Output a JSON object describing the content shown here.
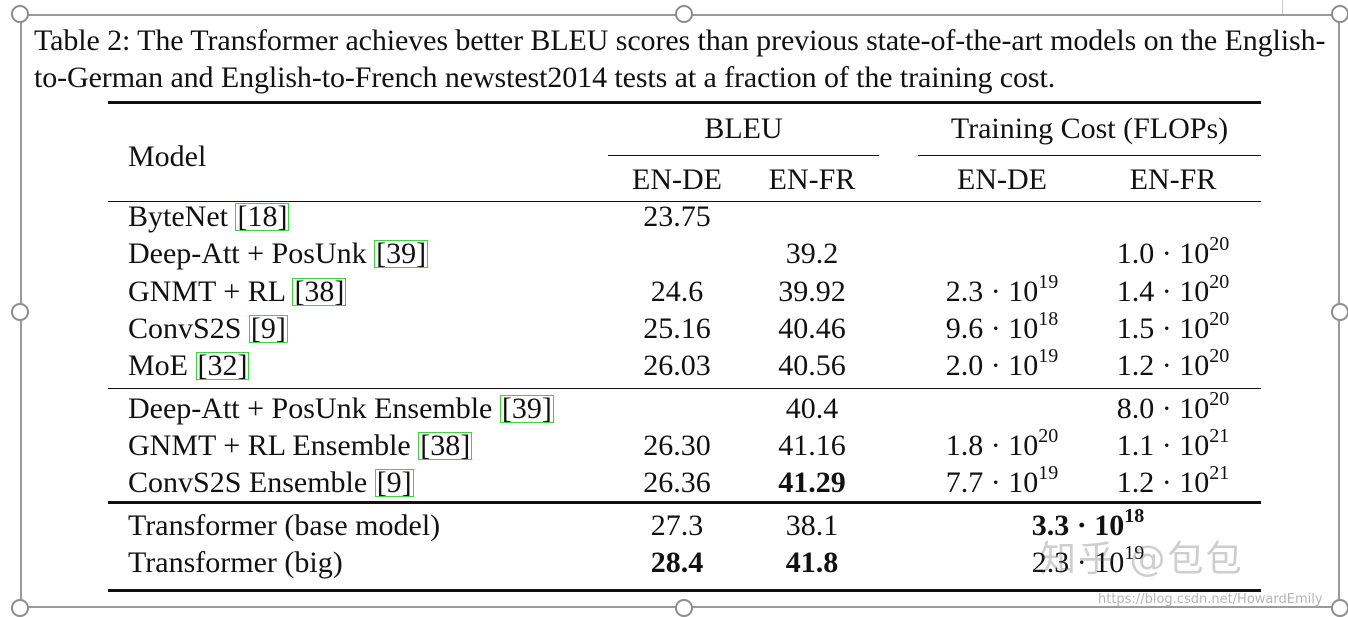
{
  "caption": "Table 2: The Transformer achieves better BLEU scores than previous state-of-the-art models on the English-to-German and English-to-French newstest2014 tests at a fraction of the training cost.",
  "header": {
    "model": "Model",
    "bleu": "BLEU",
    "training_cost": "Training Cost (FLOPs)",
    "en_de": "EN-DE",
    "en_fr": "EN-FR"
  },
  "rows": [
    {
      "model": "ByteNet ",
      "ref": "[18]",
      "bleu_de": "23.75",
      "bleu_fr": "",
      "cost_de": {
        "mant": "",
        "exp": ""
      },
      "cost_fr": {
        "mant": "",
        "exp": ""
      }
    },
    {
      "model": "Deep-Att + PosUnk ",
      "ref": "[39]",
      "bleu_de": "",
      "bleu_fr": "39.2",
      "cost_de": {
        "mant": "",
        "exp": ""
      },
      "cost_fr": {
        "mant": "1.0 · 10",
        "exp": "20"
      }
    },
    {
      "model": "GNMT + RL ",
      "ref": "[38]",
      "bleu_de": "24.6",
      "bleu_fr": "39.92",
      "cost_de": {
        "mant": "2.3 · 10",
        "exp": "19"
      },
      "cost_fr": {
        "mant": "1.4 · 10",
        "exp": "20"
      }
    },
    {
      "model": "ConvS2S ",
      "ref": "[9]",
      "bleu_de": "25.16",
      "bleu_fr": "40.46",
      "cost_de": {
        "mant": "9.6 · 10",
        "exp": "18"
      },
      "cost_fr": {
        "mant": "1.5 · 10",
        "exp": "20"
      }
    },
    {
      "model": "MoE ",
      "ref": "[32]",
      "bleu_de": "26.03",
      "bleu_fr": "40.56",
      "cost_de": {
        "mant": "2.0 · 10",
        "exp": "19"
      },
      "cost_fr": {
        "mant": "1.2 · 10",
        "exp": "20"
      }
    },
    {
      "model": "Deep-Att + PosUnk Ensemble ",
      "ref": "[39]",
      "bleu_de": "",
      "bleu_fr": "40.4",
      "cost_de": {
        "mant": "",
        "exp": ""
      },
      "cost_fr": {
        "mant": "8.0 · 10",
        "exp": "20"
      }
    },
    {
      "model": "GNMT + RL Ensemble ",
      "ref": "[38]",
      "bleu_de": "26.30",
      "bleu_fr": "41.16",
      "cost_de": {
        "mant": "1.8 · 10",
        "exp": "20"
      },
      "cost_fr": {
        "mant": "1.1 · 10",
        "exp": "21"
      }
    },
    {
      "model": "ConvS2S Ensemble ",
      "ref": "[9]",
      "bleu_de": "26.36",
      "bleu_fr": "41.29",
      "cost_de": {
        "mant": "7.7 · 10",
        "exp": "19"
      },
      "cost_fr": {
        "mant": "1.2 · 10",
        "exp": "21"
      }
    },
    {
      "model": "Transformer (base model)",
      "ref": "",
      "bleu_de": "27.3",
      "bleu_fr": "38.1",
      "cost_merged": {
        "mant": "3.3 · 10",
        "exp": "18"
      }
    },
    {
      "model": "Transformer (big)",
      "ref": "",
      "bleu_de": "28.4",
      "bleu_fr": "41.8",
      "cost_merged": {
        "mant": "2.3 · 10",
        "exp": "19"
      }
    }
  ],
  "watermark": {
    "brand": "知乎 @包包",
    "url": "https://blog.csdn.net/HowardEmily"
  }
}
